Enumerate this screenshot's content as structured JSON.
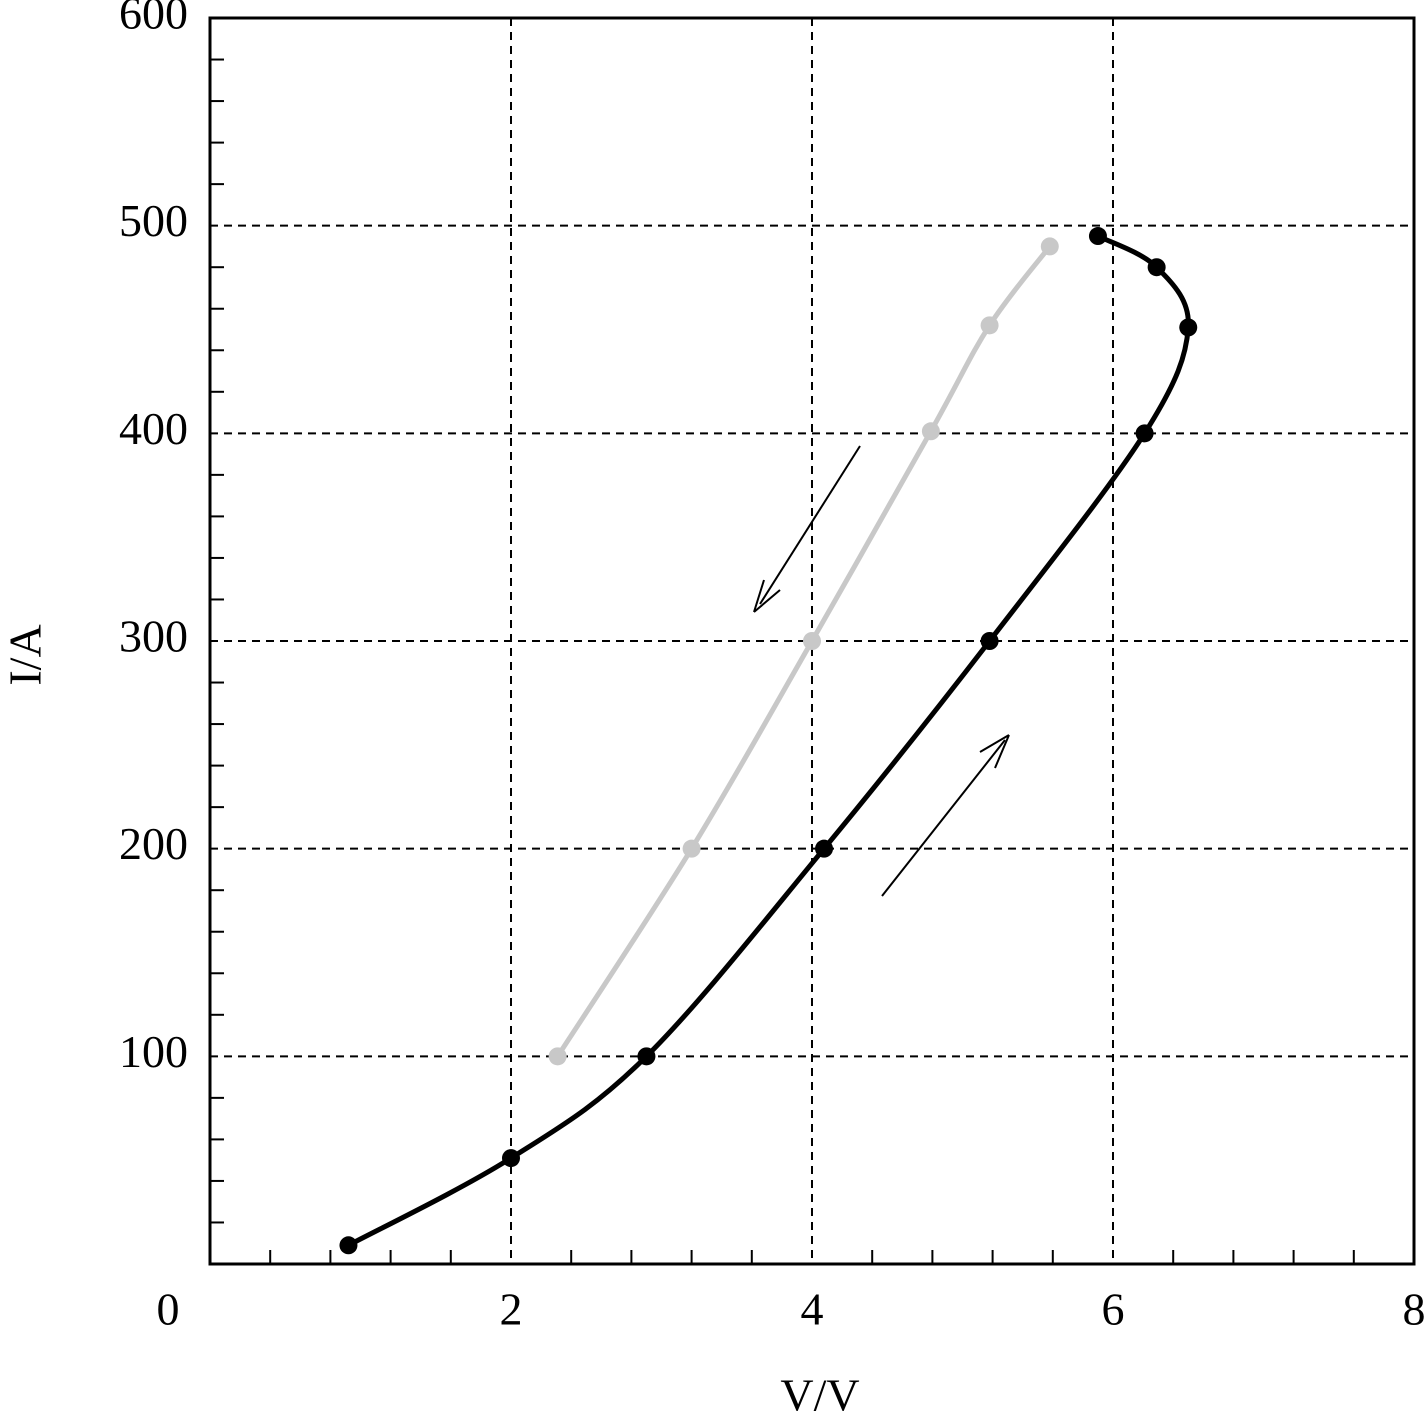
{
  "chart_data": {
    "type": "line",
    "xlabel": "V/V",
    "ylabel": "I/A",
    "xlim": [
      0,
      8
    ],
    "ylim": [
      0,
      600
    ],
    "xticks": [
      0,
      2,
      4,
      6,
      8
    ],
    "yticks": [
      100,
      200,
      300,
      400,
      500,
      600
    ],
    "xminorticks": [
      0.4,
      0.8,
      1.2,
      1.6,
      2.4,
      2.8,
      3.2,
      3.6,
      4.4,
      4.8,
      5.2,
      5.6,
      6.4,
      6.8,
      7.2,
      7.6
    ],
    "yminorticks": [
      20,
      40,
      60,
      80,
      120,
      140,
      160,
      180,
      220,
      240,
      260,
      280,
      320,
      340,
      360,
      380,
      420,
      440,
      460,
      480,
      520,
      540,
      560,
      580
    ],
    "grid": true,
    "series": [
      {
        "color": "#000000",
        "x": [
          0.92,
          2.0,
          2.9,
          4.08,
          5.18,
          6.21,
          6.5,
          6.29,
          5.9
        ],
        "values": [
          9,
          51,
          100,
          200,
          300,
          400,
          451,
          480,
          495
        ]
      },
      {
        "color": "#c8c8c8",
        "x": [
          5.58,
          5.18,
          4.79,
          4.0,
          3.2,
          2.31
        ],
        "values": [
          490,
          452,
          401,
          300,
          200,
          100
        ]
      }
    ]
  }
}
